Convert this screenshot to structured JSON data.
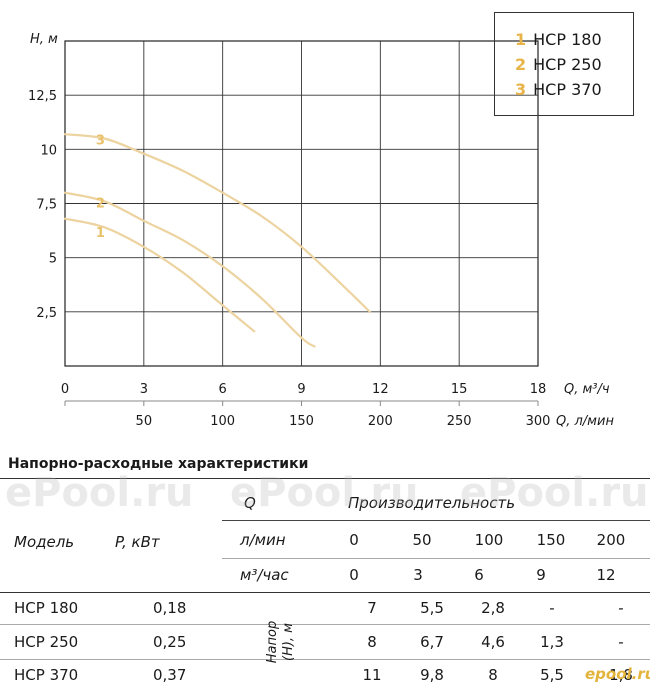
{
  "chart_data": {
    "type": "line",
    "ylabel": "H, м",
    "xlabel": "Q, м³/ч",
    "xlabel2": "Q, л/мин",
    "xlim": [
      0,
      18
    ],
    "ylim": [
      0,
      15
    ],
    "x_ticks": [
      "0",
      "3",
      "6",
      "9",
      "12",
      "15",
      "18"
    ],
    "x2_ticks": [
      "50",
      "100",
      "150",
      "200",
      "250",
      "300"
    ],
    "x2_tick_values": [
      50,
      100,
      150,
      200,
      250,
      300
    ],
    "y_ticks": [
      "2,5",
      "5",
      "7,5",
      "10",
      "12,5"
    ],
    "y_tick_values": [
      2.5,
      5,
      7.5,
      10,
      12.5
    ],
    "grid": true,
    "legend_position": "top-right",
    "series": [
      {
        "name": "HCP 180",
        "label": "1",
        "x": [
          0,
          1.5,
          3,
          4.5,
          6,
          7.2
        ],
        "y": [
          6.8,
          6.4,
          5.5,
          4.3,
          2.8,
          1.6
        ]
      },
      {
        "name": "HCP 250",
        "label": "2",
        "x": [
          0,
          1.5,
          3,
          4.5,
          6,
          7.5,
          9,
          9.5
        ],
        "y": [
          8.0,
          7.6,
          6.7,
          5.8,
          4.6,
          3.1,
          1.3,
          0.9
        ]
      },
      {
        "name": "HCP 370",
        "label": "3",
        "x": [
          0,
          1.5,
          3,
          4.5,
          6,
          7.5,
          9,
          10.5,
          11.6
        ],
        "y": [
          10.7,
          10.5,
          9.8,
          9.0,
          8.0,
          6.9,
          5.5,
          3.8,
          2.5
        ]
      }
    ],
    "line_color": "#ecd3a0",
    "label_color": "#e8c16a"
  },
  "legend": {
    "items": [
      {
        "num": "1",
        "name": "HCP 180"
      },
      {
        "num": "2",
        "name": "HCP 250"
      },
      {
        "num": "3",
        "name": "HCP 370"
      }
    ]
  },
  "table": {
    "title": "Напорно-расходные характеристики",
    "q_label": "Q",
    "productivity": "Производительность",
    "model_hdr": "Модель",
    "power_hdr": "P, кВт",
    "lmin_label": "л/мин",
    "m3h_label": "м³/час",
    "lmin_values": [
      "0",
      "50",
      "100",
      "150",
      "200"
    ],
    "m3h_values": [
      "0",
      "3",
      "6",
      "9",
      "12"
    ],
    "head_label": "Напор (H), м",
    "rows": [
      {
        "model": "HCP 180",
        "power": "0,18",
        "values": [
          "7",
          "5,5",
          "2,8",
          "-",
          "-"
        ]
      },
      {
        "model": "HCP 250",
        "power": "0,25",
        "values": [
          "8",
          "6,7",
          "4,6",
          "1,3",
          "-"
        ]
      },
      {
        "model": "HCP 370",
        "power": "0,37",
        "values": [
          "11",
          "9,8",
          "8",
          "5,5",
          "1,8"
        ]
      }
    ]
  },
  "watermark": "ePool.ru",
  "brand": "epool.ru"
}
